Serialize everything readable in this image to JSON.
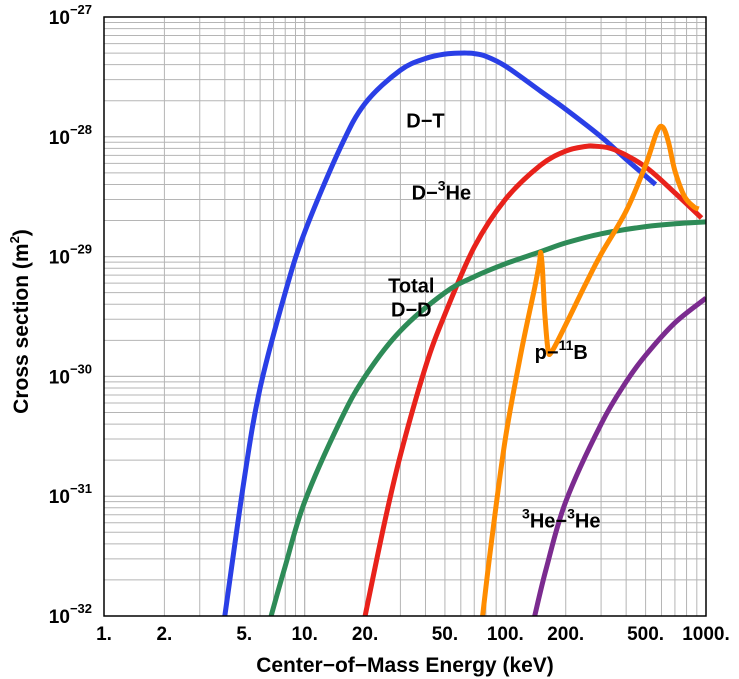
{
  "chart_data": {
    "type": "line",
    "xlabel": "Center−of−Mass Energy (keV)",
    "ylabel_main": "Cross section (m",
    "ylabel_sup": "2",
    "ylabel_tail": ")",
    "x_scale": "log",
    "y_scale": "log",
    "xlim": [
      1,
      1000
    ],
    "ylim": [
      1e-32,
      1e-27
    ],
    "grid": true,
    "x_ticks": [
      {
        "value": 1,
        "label": "1."
      },
      {
        "value": 2,
        "label": "2."
      },
      {
        "value": 5,
        "label": "5."
      },
      {
        "value": 10,
        "label": "10."
      },
      {
        "value": 20,
        "label": "20."
      },
      {
        "value": 50,
        "label": "50."
      },
      {
        "value": 100,
        "label": "100."
      },
      {
        "value": 200,
        "label": "200."
      },
      {
        "value": 500,
        "label": "500."
      },
      {
        "value": 1000,
        "label": "1000."
      }
    ],
    "y_ticks": [
      {
        "value": 1e-32,
        "base": "10",
        "exp": "−32"
      },
      {
        "value": 1e-31,
        "base": "10",
        "exp": "−31"
      },
      {
        "value": 1e-30,
        "base": "10",
        "exp": "−30"
      },
      {
        "value": 1e-29,
        "base": "10",
        "exp": "−29"
      },
      {
        "value": 1e-28,
        "base": "10",
        "exp": "−28"
      },
      {
        "value": 1e-27,
        "base": "10",
        "exp": "−27"
      }
    ],
    "series": [
      {
        "key": "dt",
        "color": "#2a3fe6",
        "label_lines": [
          {
            "parts": [
              {
                "t": "D−T"
              }
            ]
          }
        ],
        "points": [
          [
            4.0,
            1e-32
          ],
          [
            5,
            1.4e-31
          ],
          [
            6,
            8e-31
          ],
          [
            8,
            5e-30
          ],
          [
            10,
            1.6e-29
          ],
          [
            15,
            8e-29
          ],
          [
            20,
            1.9e-28
          ],
          [
            30,
            3.6e-28
          ],
          [
            40,
            4.5e-28
          ],
          [
            50,
            4.9e-28
          ],
          [
            60,
            5e-28
          ],
          [
            65,
            5e-28
          ],
          [
            70,
            4.95e-28
          ],
          [
            80,
            4.7e-28
          ],
          [
            100,
            3.9e-28
          ],
          [
            150,
            2.4e-28
          ],
          [
            200,
            1.7e-28
          ],
          [
            300,
            1e-28
          ],
          [
            400,
            6.5e-29
          ],
          [
            560,
            4e-29
          ]
        ]
      },
      {
        "key": "d3he",
        "color": "#e8221b",
        "label_lines": [
          {
            "parts": [
              {
                "t": "D−"
              },
              {
                "t": "3",
                "sup": true
              },
              {
                "t": "He"
              }
            ]
          }
        ],
        "points": [
          [
            20,
            1e-32
          ],
          [
            25,
            6e-32
          ],
          [
            30,
            2.2e-31
          ],
          [
            40,
            1.2e-30
          ],
          [
            50,
            3.3e-30
          ],
          [
            70,
            1.2e-29
          ],
          [
            100,
            3e-29
          ],
          [
            150,
            5.8e-29
          ],
          [
            200,
            7.6e-29
          ],
          [
            250,
            8.3e-29
          ],
          [
            280,
            8.35e-29
          ],
          [
            350,
            7.8e-29
          ],
          [
            500,
            5.6e-29
          ],
          [
            700,
            3.4e-29
          ],
          [
            950,
            2.1e-29
          ]
        ]
      },
      {
        "key": "dd",
        "color": "#2e8b57",
        "label_lines": [
          {
            "parts": [
              {
                "t": "Total"
              }
            ]
          },
          {
            "parts": [
              {
                "t": "D−D"
              }
            ]
          }
        ],
        "points": [
          [
            6.8,
            1e-32
          ],
          [
            8,
            2.6e-32
          ],
          [
            10,
            9e-32
          ],
          [
            15,
            4.2e-31
          ],
          [
            20,
            1e-30
          ],
          [
            30,
            2.4e-30
          ],
          [
            50,
            5e-30
          ],
          [
            70,
            6.8e-30
          ],
          [
            100,
            8.7e-30
          ],
          [
            150,
            1.1e-29
          ],
          [
            200,
            1.3e-29
          ],
          [
            300,
            1.55e-29
          ],
          [
            500,
            1.78e-29
          ],
          [
            700,
            1.88e-29
          ],
          [
            1000,
            1.95e-29
          ]
        ]
      },
      {
        "key": "p11b",
        "color": "#ff8c00",
        "label_lines": [
          {
            "parts": [
              {
                "t": "p−"
              },
              {
                "t": "11",
                "sup": true
              },
              {
                "t": "B"
              }
            ]
          }
        ],
        "points": [
          [
            77,
            1e-32
          ],
          [
            85,
            4e-32
          ],
          [
            100,
            3e-31
          ],
          [
            120,
            1.6e-30
          ],
          [
            140,
            5.5e-30
          ],
          [
            148,
            9e-30
          ],
          [
            150,
            1.08e-29
          ],
          [
            153,
            8e-30
          ],
          [
            157,
            3.5e-30
          ],
          [
            163,
            1.7e-30
          ],
          [
            170,
            1.6e-30
          ],
          [
            200,
            2.7e-30
          ],
          [
            250,
            5.8e-30
          ],
          [
            300,
            1.05e-29
          ],
          [
            400,
            2.4e-29
          ],
          [
            500,
            5.8e-29
          ],
          [
            570,
            1.1e-28
          ],
          [
            610,
            1.2e-28
          ],
          [
            650,
            9e-29
          ],
          [
            700,
            5.2e-29
          ],
          [
            780,
            3.2e-29
          ],
          [
            870,
            2.6e-29
          ],
          [
            920,
            2.5e-29
          ]
        ]
      },
      {
        "key": "he3he3",
        "color": "#7b2b8f",
        "label_lines": [
          {
            "parts": [
              {
                "t": "3",
                "sup": true
              },
              {
                "t": "He−"
              },
              {
                "t": "3",
                "sup": true
              },
              {
                "t": "He"
              }
            ]
          }
        ],
        "points": [
          [
            140,
            1e-32
          ],
          [
            160,
            2.5e-32
          ],
          [
            200,
            9e-32
          ],
          [
            300,
            4e-31
          ],
          [
            400,
            9e-31
          ],
          [
            500,
            1.5e-30
          ],
          [
            700,
            2.8e-30
          ],
          [
            1000,
            4.5e-30
          ]
        ]
      }
    ],
    "labels": {
      "dt": {
        "x": 40,
        "y": 1.2e-28
      },
      "d3he": {
        "x": 48,
        "y": 3e-29
      },
      "dd": {
        "x": 34,
        "y": 5e-30
      },
      "p11b": {
        "x": 190,
        "y": 1.4e-30
      },
      "he3he3": {
        "x": 190,
        "y": 5.5e-32
      }
    }
  }
}
